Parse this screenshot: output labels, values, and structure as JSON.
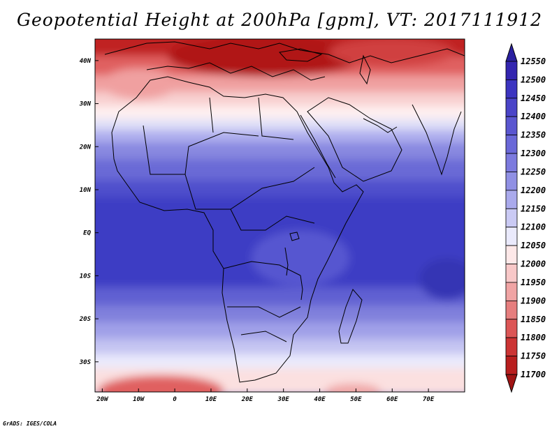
{
  "title": "Geopotential Height at 200hPa [gpm], VT: 2017111912",
  "footer": "GrADS: IGES/COLA",
  "map": {
    "x_ticks": [
      "20W",
      "10W",
      "0",
      "10E",
      "20E",
      "30E",
      "40E",
      "50E",
      "60E",
      "70E"
    ],
    "x_tick_lons": [
      -20,
      -10,
      0,
      10,
      20,
      30,
      40,
      50,
      60,
      70
    ],
    "y_ticks": [
      "40N",
      "30N",
      "20N",
      "10N",
      "EQ",
      "10S",
      "20S",
      "30S"
    ],
    "y_tick_lats": [
      40,
      30,
      20,
      10,
      0,
      -10,
      -20,
      -30
    ],
    "lon_range": [
      -22,
      80
    ],
    "lat_range": [
      -37,
      45
    ]
  },
  "colorbar": {
    "levels": [
      "12550",
      "12500",
      "12450",
      "12400",
      "12350",
      "12300",
      "12250",
      "12200",
      "12150",
      "12100",
      "12050",
      "12000",
      "11950",
      "11900",
      "11850",
      "11800",
      "11750",
      "11700"
    ],
    "colors": [
      "#2a20a0",
      "#3325b0",
      "#3c34c0",
      "#4a44c8",
      "#5a56d0",
      "#6a68d8",
      "#7c7ade",
      "#9090e4",
      "#aaaaec",
      "#cacaf4",
      "#eaeafc",
      "#fde8e8",
      "#f8c8c8",
      "#f0a4a4",
      "#e67e7e",
      "#dc5656",
      "#cc3434",
      "#b81e1e",
      "#a01414"
    ]
  }
}
